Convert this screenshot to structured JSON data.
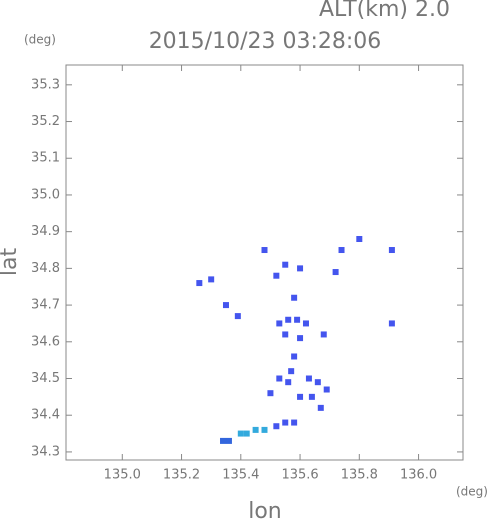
{
  "chart_data": {
    "type": "scatter",
    "title": "2015/10/23 03:28:06",
    "annotation": "ALT(km) 2.0",
    "y_unit": "(deg)",
    "x_unit": "(deg)",
    "xlabel": "lon",
    "ylabel": "lat",
    "xlim": [
      134.81,
      136.15
    ],
    "ylim": [
      34.278,
      35.354
    ],
    "xticks": [
      {
        "value": 135.0,
        "label": "135.0"
      },
      {
        "value": 135.2,
        "label": "135.2"
      },
      {
        "value": 135.4,
        "label": "135.4"
      },
      {
        "value": 135.6,
        "label": "135.6"
      },
      {
        "value": 135.8,
        "label": "135.8"
      },
      {
        "value": 136.0,
        "label": "136.0"
      }
    ],
    "yticks": [
      34.3,
      34.4,
      34.5,
      34.6,
      34.7,
      34.8,
      34.9,
      {
        "value": 35.0,
        "label": "35.0"
      },
      35.1,
      35.2,
      35.3
    ],
    "grid": false,
    "series": [
      {
        "color": "#4455ee",
        "x": [
          135.26,
          135.3,
          135.35,
          135.39,
          135.48,
          135.52,
          135.55,
          135.58,
          135.6,
          135.72,
          135.74,
          135.8,
          135.91,
          135.91,
          135.53,
          135.56,
          135.59,
          135.62,
          135.55,
          135.6,
          135.68,
          135.58,
          135.57,
          135.53,
          135.56,
          135.63,
          135.66,
          135.69,
          135.64,
          135.6,
          135.67,
          135.5,
          135.55,
          135.52,
          135.58
        ],
        "values": [
          34.76,
          34.77,
          34.7,
          34.67,
          34.85,
          34.78,
          34.81,
          34.72,
          34.8,
          34.79,
          34.85,
          34.88,
          34.85,
          34.65,
          34.65,
          34.66,
          34.66,
          34.65,
          34.62,
          34.61,
          34.62,
          34.56,
          34.52,
          34.5,
          34.49,
          34.5,
          34.49,
          34.47,
          34.45,
          34.45,
          34.42,
          34.46,
          34.38,
          34.37,
          34.38
        ]
      },
      {
        "color": "#33aadd",
        "x": [
          135.45,
          135.42,
          135.4,
          135.48
        ],
        "values": [
          34.36,
          34.35,
          34.35,
          34.36
        ]
      },
      {
        "color": "#3366dd",
        "x": [
          135.36,
          135.34
        ],
        "values": [
          34.33,
          34.33
        ]
      }
    ]
  }
}
